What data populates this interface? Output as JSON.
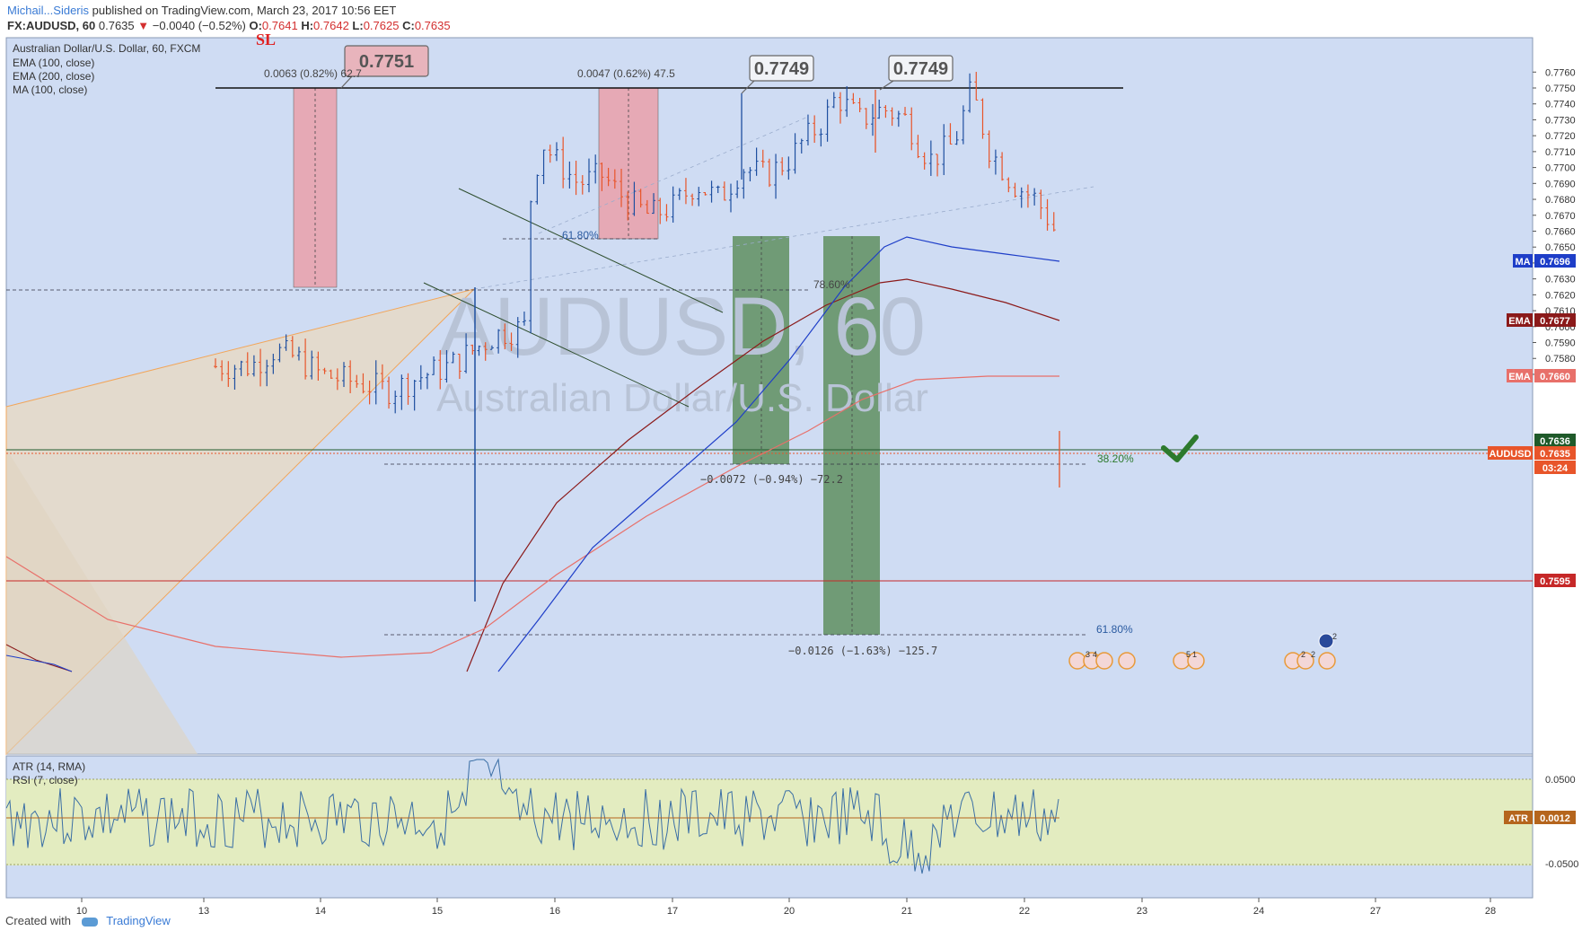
{
  "header": {
    "author": "Michail...Sideris",
    "published": "published on TradingView.com, March 23, 2017 10:56 EET",
    "symbol_line": {
      "symbol": "FX:AUDUSD, 60",
      "last": "0.7635",
      "arrow": "▼",
      "change": "−0.0040 (−0.52%)",
      "o_label": "O:",
      "o": "0.7641",
      "h_label": "H:",
      "h": "0.7642",
      "l_label": "L:",
      "l": "0.7625",
      "c_label": "C:",
      "c": "0.7635"
    }
  },
  "legend": {
    "title": "Australian Dollar/U.S. Dollar, 60, FXCM",
    "items": [
      "EMA (100, close)",
      "EMA (200, close)",
      "MA (100, close)"
    ]
  },
  "watermark": {
    "line1": "AUDUSD, 60",
    "line2": "Australian Dollar/U.S. Dollar"
  },
  "annotations": {
    "sl": "SL",
    "box_0751": "0.7751",
    "box_0749a": "0.7749",
    "box_0749b": "0.7749",
    "measure1": "0.0063 (0.82%) 62.7",
    "measure2": "0.0047 (0.62%) 47.5",
    "measure3": "−0.0072 (−0.94%) −72.2",
    "measure4": "−0.0126 (−1.63%) −125.7",
    "fib_618_top": "61.80%",
    "fib_786": "78.60%",
    "fib_382": "38.20%",
    "fib_618_bottom": "61.80%"
  },
  "price_axis": {
    "ticks": [
      "0.7760",
      "0.7750",
      "0.7740",
      "0.7730",
      "0.7720",
      "0.7710",
      "0.7700",
      "0.7690",
      "0.7680",
      "0.7670",
      "0.7660",
      "0.7650",
      "0.7640",
      "0.7630",
      "0.7620",
      "0.7610",
      "0.7600",
      "0.7590",
      "0.7580",
      "0.7570"
    ],
    "tags": [
      {
        "label": "MA",
        "value": "0.7696",
        "color": "#1e3ec8"
      },
      {
        "label": "EMA",
        "value": "0.7677",
        "color": "#8b1a1a"
      },
      {
        "label": "EMA",
        "value": "0.7660",
        "color": "#e8706a"
      },
      {
        "label": "",
        "value": "0.7636",
        "color": "#1f5a2a"
      },
      {
        "label": "AUDUSD",
        "value": "0.7635",
        "color": "#e8552a"
      },
      {
        "label": "",
        "value": "03:24",
        "color": "#e8552a"
      },
      {
        "label": "",
        "value": "0.7595",
        "color": "#c62828"
      }
    ]
  },
  "indicator": {
    "labels": [
      "ATR (14, RMA)",
      "RSI (7, close)"
    ],
    "ticks": [
      "0.0500",
      "-0.0500"
    ],
    "tag": {
      "label": "ATR",
      "value": "0.0012",
      "color": "#b5651d"
    }
  },
  "time_axis": {
    "ticks": [
      "10",
      "13",
      "14",
      "15",
      "16",
      "17",
      "20",
      "21",
      "22",
      "23",
      "24",
      "27",
      "28"
    ]
  },
  "event_icons": [
    "3",
    "4",
    "5",
    "1",
    "2",
    "2",
    "2"
  ],
  "footer": {
    "created": "Created with",
    "brand": "TradingView"
  },
  "colors": {
    "bg": "#cfdcf3",
    "up": "#1e4fa0",
    "down": "#e8552a",
    "ema100": "#8b1a1a",
    "ema200": "#e8706a",
    "ma100": "#1e3ec8",
    "green_box": "#5f8f5f",
    "pink_box": "#e8a3ae",
    "rsi_band": "#e3ecc0"
  },
  "chart_data": {
    "type": "candlestick",
    "title": "Australian Dollar/U.S. Dollar, 60, FXCM",
    "ylim": [
      0.7565,
      0.7767
    ],
    "x_ticks": [
      "10",
      "13",
      "14",
      "15",
      "16",
      "17",
      "20",
      "21",
      "22",
      "23",
      "24",
      "27",
      "28"
    ],
    "series": [
      {
        "name": "EMA (100, close)",
        "last": 0.7677
      },
      {
        "name": "EMA (200, close)",
        "last": 0.766
      },
      {
        "name": "MA (100, close)",
        "last": 0.7696
      }
    ],
    "price_path": [
      [
        13.4,
        0.7575
      ],
      [
        13.6,
        0.7585
      ],
      [
        13.8,
        0.758
      ],
      [
        14.0,
        0.757
      ],
      [
        14.6,
        0.756
      ],
      [
        14.9,
        0.757
      ],
      [
        15.1,
        0.7575
      ],
      [
        15.3,
        0.7585
      ],
      [
        15.5,
        0.7595
      ],
      [
        15.75,
        0.76
      ],
      [
        15.8,
        0.769
      ],
      [
        15.9,
        0.7715
      ],
      [
        16.0,
        0.7705
      ],
      [
        16.2,
        0.769
      ],
      [
        16.4,
        0.7695
      ],
      [
        16.6,
        0.768
      ],
      [
        16.8,
        0.767
      ],
      [
        17.0,
        0.7675
      ],
      [
        17.2,
        0.769
      ],
      [
        17.4,
        0.768
      ],
      [
        17.6,
        0.77
      ],
      [
        17.8,
        0.7695
      ],
      [
        18.0,
        0.7705
      ],
      [
        18.1,
        0.7715
      ],
      [
        18.3,
        0.773
      ],
      [
        18.4,
        0.7745
      ],
      [
        18.6,
        0.773
      ],
      [
        18.8,
        0.7737
      ],
      [
        19.0,
        0.773
      ],
      [
        19.1,
        0.7715
      ],
      [
        19.2,
        0.7705
      ],
      [
        19.4,
        0.7715
      ],
      [
        19.5,
        0.7738
      ],
      [
        19.55,
        0.7749
      ],
      [
        19.7,
        0.7712
      ],
      [
        19.9,
        0.769
      ],
      [
        20.1,
        0.768
      ],
      [
        20.2,
        0.7668
      ],
      [
        20.3,
        0.7655
      ],
      [
        20.4,
        0.7645
      ],
      [
        20.5,
        0.766
      ],
      [
        20.7,
        0.7675
      ],
      [
        20.8,
        0.7678
      ],
      [
        20.9,
        0.7674
      ],
      [
        21.0,
        0.7672
      ],
      [
        21.2,
        0.7668
      ],
      [
        21.35,
        0.7663
      ],
      [
        21.45,
        0.765
      ],
      [
        21.55,
        0.7635
      ]
    ],
    "levels": {
      "resistance": 0.775,
      "support": 0.7595,
      "last": 0.7635
    }
  }
}
